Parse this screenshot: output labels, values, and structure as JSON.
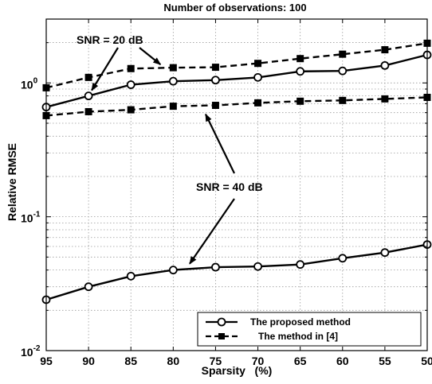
{
  "chart_data": {
    "type": "line",
    "title": "Number of observations: 100",
    "xlabel": "Sparsity   (%)",
    "ylabel": "Relative RMSE",
    "yscale": "log",
    "x_reversed": true,
    "xlim": [
      95,
      50
    ],
    "ylim": [
      0.01,
      3
    ],
    "grid": true,
    "legend_position": "bottom-right",
    "x": [
      95,
      90,
      85,
      80,
      75,
      70,
      65,
      60,
      55,
      50
    ],
    "x_tick_labels": [
      "95",
      "90",
      "85",
      "80",
      "75",
      "70",
      "65",
      "60",
      "55",
      "50"
    ],
    "y_ticks": [
      {
        "value": 0.01,
        "base": "10",
        "exp": "-2"
      },
      {
        "value": 0.1,
        "base": "10",
        "exp": "-1"
      },
      {
        "value": 1,
        "base": "10",
        "exp": "0"
      }
    ],
    "series": [
      {
        "name": "The proposed method",
        "group": "SNR = 20 dB",
        "style": "solid",
        "marker": "circle",
        "values": [
          0.66,
          0.8,
          0.97,
          1.03,
          1.05,
          1.1,
          1.22,
          1.23,
          1.35,
          1.62
        ]
      },
      {
        "name": "The method in [4]",
        "group": "SNR = 20 dB",
        "style": "dashed",
        "marker": "square",
        "values": [
          0.92,
          1.1,
          1.28,
          1.3,
          1.31,
          1.4,
          1.52,
          1.64,
          1.77,
          1.98
        ]
      },
      {
        "name": "The method in [4]",
        "group": "SNR = 40 dB",
        "style": "dashed",
        "marker": "square",
        "values": [
          0.57,
          0.61,
          0.63,
          0.67,
          0.68,
          0.71,
          0.73,
          0.74,
          0.76,
          0.78
        ]
      },
      {
        "name": "The proposed method",
        "group": "SNR = 40 dB",
        "style": "solid",
        "marker": "circle",
        "values": [
          0.024,
          0.03,
          0.036,
          0.04,
          0.042,
          0.0425,
          0.044,
          0.049,
          0.054,
          0.062
        ]
      }
    ],
    "legend": [
      {
        "label": "The proposed method",
        "style": "solid",
        "marker": "circle"
      },
      {
        "label": "The method in [4]",
        "style": "dashed",
        "marker": "square"
      }
    ],
    "annotations": [
      {
        "text": "SNR = 20 dB",
        "points_to": [
          {
            "series": 0,
            "x": 90
          },
          {
            "series": 1,
            "x": 80
          }
        ]
      },
      {
        "text": "SNR = 40 dB",
        "points_to": [
          {
            "series": 2,
            "x": 77
          },
          {
            "series": 3,
            "x": 78
          }
        ]
      }
    ],
    "colors": {
      "line": "#000000",
      "grid": "#9a9a9a",
      "background": "#ffffff"
    }
  }
}
